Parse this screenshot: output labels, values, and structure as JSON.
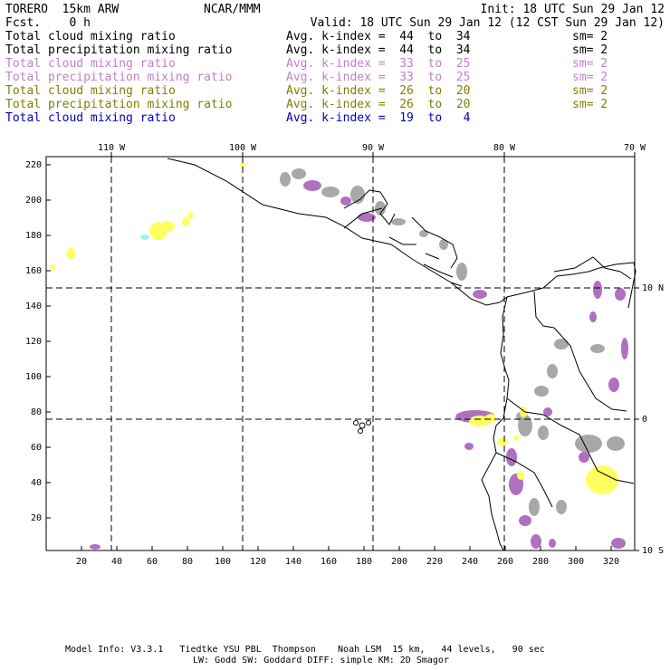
{
  "header": {
    "model": "TORERO  15km ARW",
    "fcst": "Fcst.    0 h",
    "org": "NCAR/MMM",
    "init": "Init: 18 UTC Sun 29 Jan 12",
    "valid": "Valid: 18 UTC Sun 29 Jan 12 (12 CST Sun 29 Jan 12)"
  },
  "fields": [
    {
      "name": "Total cloud mixing ratio",
      "kindex": "Avg. k-index =  44  to  34",
      "sm": "sm= 2",
      "color": "#000000"
    },
    {
      "name": "Total precipitation mixing ratio",
      "kindex": "Avg. k-index =  44  to  34",
      "sm": "sm= 2",
      "color": "#000000"
    },
    {
      "name": "Total cloud mixing ratio",
      "kindex": "Avg. k-index =  33  to  25",
      "sm": "sm= 2",
      "color": "#c080c8"
    },
    {
      "name": "Total precipitation mixing ratio",
      "kindex": "Avg. k-index =  33  to  25",
      "sm": "sm= 2",
      "color": "#c080c8"
    },
    {
      "name": "Total cloud mixing ratio",
      "kindex": "Avg. k-index =  26  to  20",
      "sm": "sm= 2",
      "color": "#808000"
    },
    {
      "name": "Total precipitation mixing ratio",
      "kindex": "Avg. k-index =  26  to  20",
      "sm": "sm= 2",
      "color": "#808000"
    },
    {
      "name": "Total cloud mixing ratio",
      "kindex": "Avg. k-index =  19  to   4",
      "sm": "",
      "color": "#0000c8"
    }
  ],
  "map": {
    "lon_labels": [
      "110 W",
      "100 W",
      "90 W",
      "80 W",
      "70 W"
    ],
    "lat_labels": [
      "10 N",
      "0",
      "10 S"
    ],
    "y_ticks": [
      "220",
      "200",
      "180",
      "160",
      "140",
      "120",
      "100",
      "80",
      "60",
      "40",
      "20"
    ],
    "x_ticks": [
      "20",
      "40",
      "60",
      "80",
      "100",
      "120",
      "140",
      "160",
      "180",
      "200",
      "220",
      "240",
      "260",
      "280",
      "300",
      "320"
    ],
    "colors": {
      "gray": "#a8a8a8",
      "purple": "#b070c0",
      "yellow": "#ffff60",
      "cyan": "#a0f0f0"
    }
  },
  "footer": {
    "line1": "Model Info: V3.3.1   Tiedtke YSU PBL  Thompson    Noah LSM  15 km,   44 levels,   90 sec",
    "line2": "LW: Godd SW: Goddard DIFF: simple KM: 2D Smagor"
  }
}
